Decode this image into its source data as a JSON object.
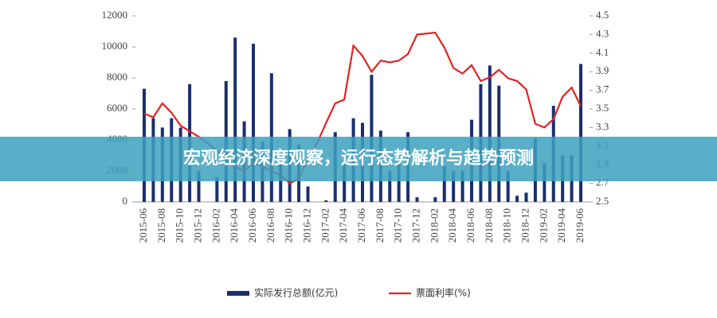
{
  "chart_data": {
    "type": "bar-line",
    "title": "宏观经济深度观察，运行态势解析与趋势预测",
    "categories": [
      "2015-06",
      null,
      "2015-08",
      null,
      "2015-10",
      null,
      "2015-12",
      null,
      "2016-02",
      null,
      "2016-04",
      null,
      "2016-06",
      null,
      "2016-08",
      null,
      "2016-10",
      null,
      "2016-12",
      null,
      "2017-02",
      null,
      "2017-04",
      null,
      "2017-06",
      null,
      "2017-08",
      null,
      "2017-10",
      null,
      "2017-12",
      null,
      "2018-02",
      null,
      "2018-04",
      null,
      "2018-06",
      null,
      "2018-08",
      null,
      "2018-10",
      null,
      "2018-12",
      null,
      "2019-02",
      null,
      "2019-04",
      null,
      "2019-06"
    ],
    "series": [
      {
        "name": "实际发行总额(亿元)",
        "type": "bar",
        "color": "#1b2f6e",
        "values": [
          7300,
          5400,
          4800,
          5400,
          4800,
          7600,
          2000,
          0,
          1600,
          7800,
          10600,
          5200,
          10200,
          3900,
          8300,
          2500,
          4700,
          3700,
          1000,
          0,
          100,
          4500,
          2500,
          5400,
          5100,
          8200,
          4600,
          2000,
          2500,
          4500,
          300,
          0,
          300,
          2300,
          2000,
          2000,
          5300,
          7600,
          8800,
          7500,
          2000,
          400,
          600,
          4100,
          2500,
          6200,
          3000,
          3000,
          8900
        ]
      },
      {
        "name": "票面利率(%)",
        "type": "line",
        "axis": "y2",
        "color": "#e3231f",
        "values": [
          3.45,
          3.41,
          3.56,
          3.46,
          3.32,
          3.26,
          3.2,
          3.13,
          3.05,
          2.96,
          2.88,
          2.83,
          2.92,
          2.88,
          2.83,
          2.79,
          2.7,
          2.75,
          2.96,
          3.13,
          3.35,
          3.56,
          3.6,
          4.18,
          4.07,
          3.9,
          4.02,
          4.0,
          4.02,
          4.09,
          4.3,
          4.31,
          4.32,
          4.16,
          3.94,
          3.88,
          3.97,
          3.8,
          3.84,
          3.92,
          3.83,
          3.8,
          3.71,
          3.34,
          3.3,
          3.39,
          3.63,
          3.73,
          3.53
        ]
      }
    ],
    "ylim": [
      0,
      12000
    ],
    "yticks": [
      0,
      2000,
      4000,
      6000,
      8000,
      10000,
      12000
    ],
    "y2lim": [
      2.5,
      4.5
    ],
    "y2ticks": [
      2.5,
      2.7,
      2.9,
      3.1,
      3.3,
      3.5,
      3.7,
      3.9,
      4.1,
      4.3,
      4.5
    ],
    "legend": "bottom"
  }
}
